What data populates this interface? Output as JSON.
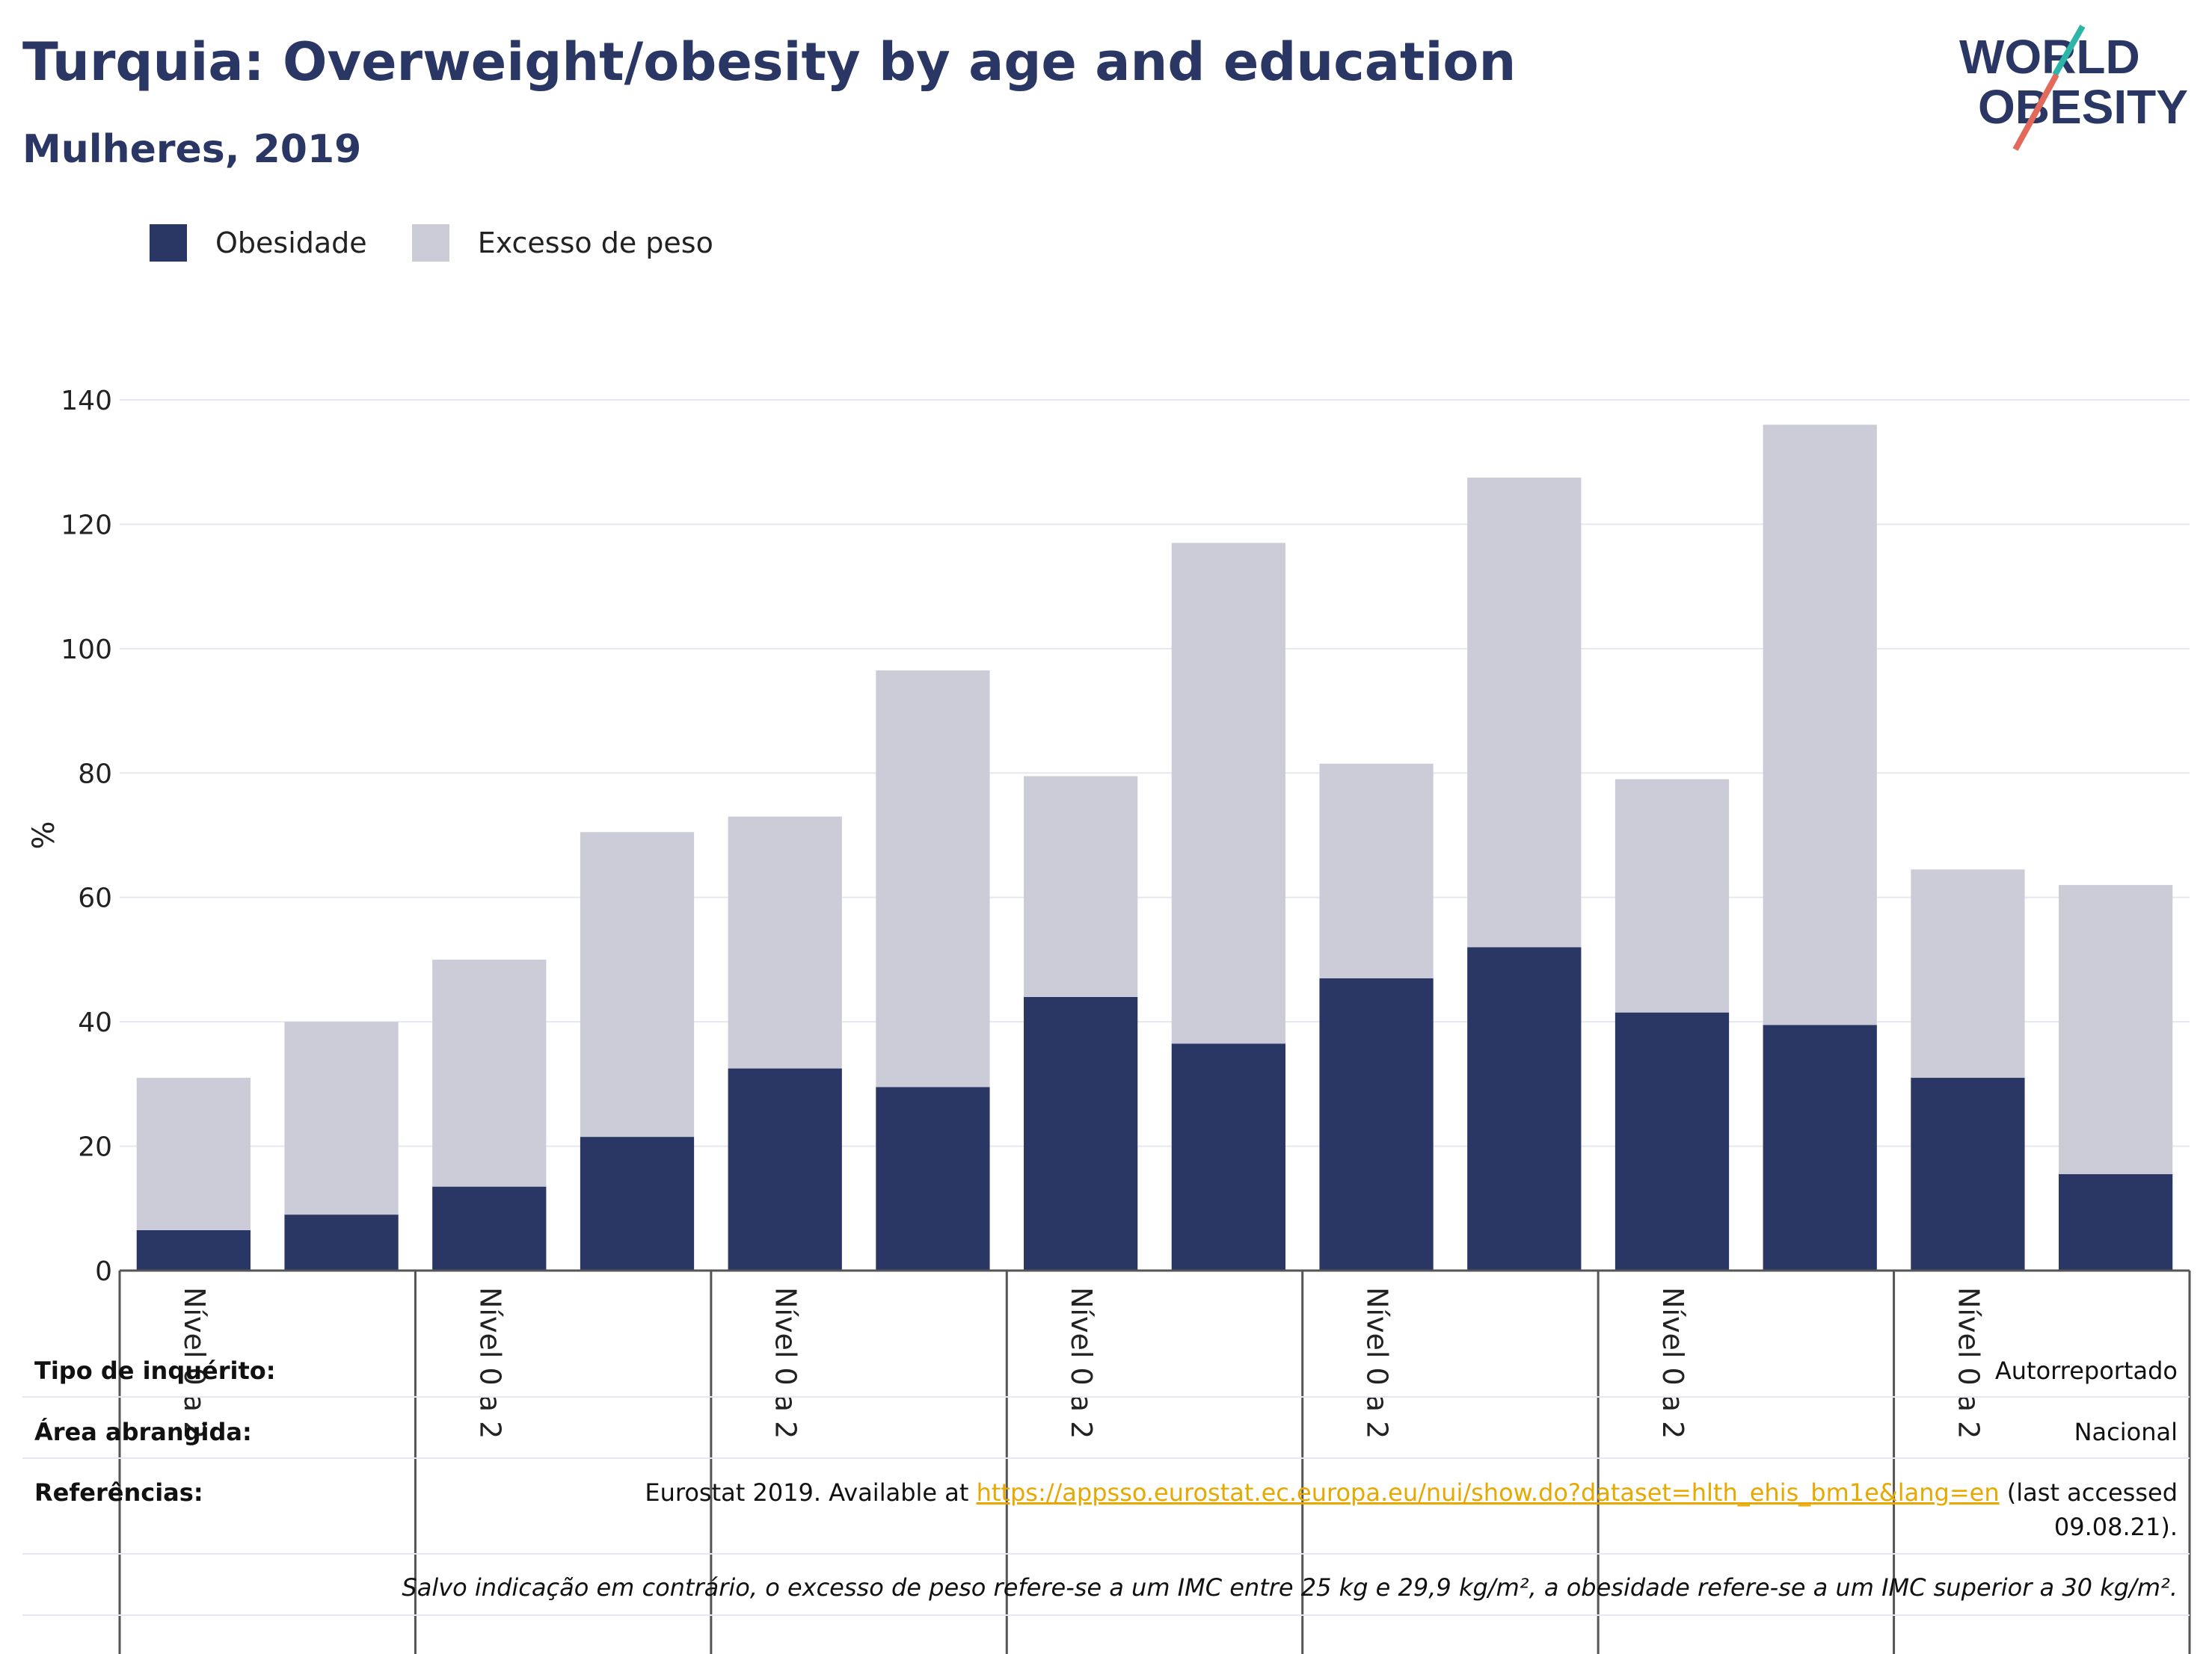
{
  "header": {
    "title": "Turquia: Overweight/obesity by age and education",
    "subtitle": "Mulheres, 2019"
  },
  "logo": {
    "line1": "WORLD",
    "line2": "OBESITY"
  },
  "colors": {
    "obesity": "#2a3663",
    "overweight": "#cbccd8",
    "text": "#2a3663",
    "accent_teal": "#2cb5a8",
    "accent_red": "#e36a5a",
    "link": "#e8a800"
  },
  "chart_data": {
    "type": "bar",
    "stacked": true,
    "ylabel": "%",
    "ylim": [
      0,
      140
    ],
    "yticks": [
      0,
      20,
      40,
      60,
      80,
      100,
      120,
      140
    ],
    "grid": true,
    "legend_position": "top-left",
    "categories": [
      "Nível 0 a 2",
      "",
      "Nível 0 a 2",
      "",
      "Nível 0 a 2",
      "",
      "Nível 0 a 2",
      "",
      "Nível 0 a 2",
      "",
      "Nível 0 a 2",
      "",
      "Nível 0 a 2",
      ""
    ],
    "series": [
      {
        "name": "Obesidade",
        "values": [
          6.5,
          9,
          13.5,
          21.5,
          32.5,
          29.5,
          44,
          36.5,
          47,
          52,
          41.5,
          39.5,
          31,
          15.5
        ]
      },
      {
        "name": "Excesso de peso",
        "values": [
          24.5,
          31,
          36.5,
          49,
          40.5,
          67,
          35.5,
          80.5,
          34.5,
          75.5,
          37.5,
          96.5,
          33.5,
          46.5
        ]
      }
    ]
  },
  "meta": {
    "survey_label": "Tipo de inquérito:",
    "survey_value": "Autorreportado",
    "area_label": "Área abrangida:",
    "area_value": "Nacional",
    "refs_label": "Referências:",
    "refs_prefix": "Eurostat 2019. Available at",
    "refs_link": "https://appsso.eurostat.ec.europa.eu/nui/show.do?dataset=hlth_ehis_bm1e&lang=en",
    "refs_suffix": "(last accessed",
    "refs_date": "09.08.21).",
    "note": "Salvo indicação em contrário, o excesso de peso refere-se a um IMC entre 25 kg e 29,9 kg/m², a obesidade refere-se a um IMC superior a 30 kg/m²."
  }
}
